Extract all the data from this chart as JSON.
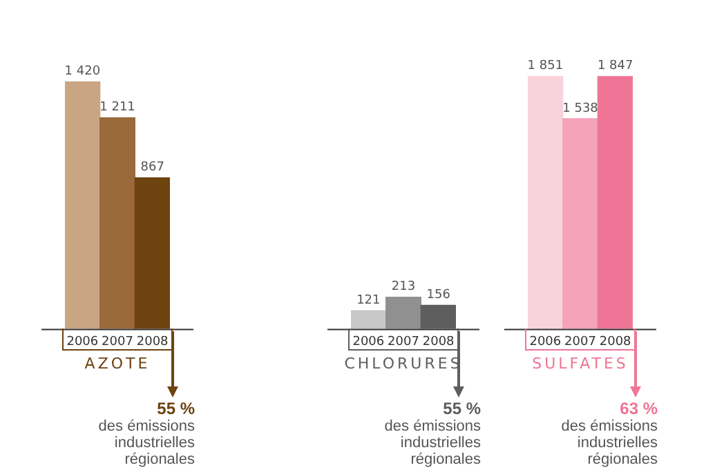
{
  "chart_data": [
    {
      "type": "bar",
      "xlabel": "AZOTE",
      "categories": [
        "2006",
        "2007",
        "2008"
      ],
      "values": [
        1420,
        1211,
        867
      ],
      "value_labels": [
        "1 420",
        "1 211",
        "867"
      ],
      "colors": [
        "#c9a584",
        "#9a6a3a",
        "#6e4310"
      ],
      "annotations": [
        "55 %",
        "des émissions industrielles régionales"
      ]
    },
    {
      "type": "bar",
      "xlabel": "CHLORURES",
      "categories": [
        "2006",
        "2007",
        "2008"
      ],
      "values": [
        121,
        213,
        156
      ],
      "value_labels": [
        "121",
        "213",
        "156"
      ],
      "colors": [
        "#c8c8c8",
        "#909090",
        "#5e5e5e"
      ],
      "annotations": [
        "55 %",
        "des émissions industrielles régionales"
      ]
    },
    {
      "type": "bar",
      "xlabel": "SULFATES",
      "categories": [
        "2006",
        "2007",
        "2008"
      ],
      "values": [
        1851,
        1538,
        1847
      ],
      "value_labels": [
        "1 851",
        "1 538",
        "1 847"
      ],
      "colors": [
        "#f9d3dc",
        "#f4a3b8",
        "#ef7596"
      ],
      "annotations": [
        "63 %",
        "des émissions industrielles régionales"
      ]
    }
  ]
}
